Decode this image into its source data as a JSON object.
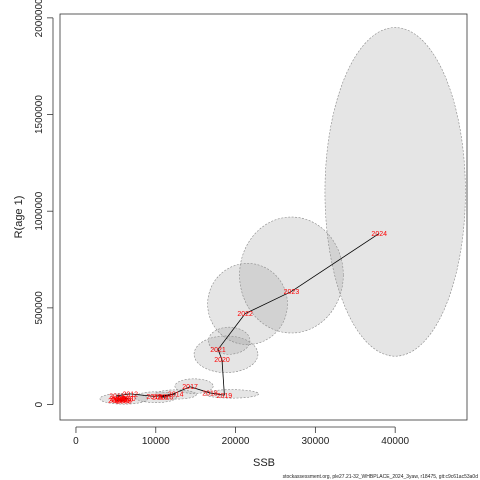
{
  "chart_data": {
    "type": "scatter",
    "xlabel": "SSB",
    "ylabel": "R(age 1)",
    "xlim": [
      -2000,
      49000
    ],
    "ylim": [
      -80000,
      2020000
    ],
    "x_ticks": [
      0,
      10000,
      20000,
      30000,
      40000
    ],
    "y_ticks": [
      0,
      500000,
      1000000,
      1500000,
      2000000
    ],
    "grid": false,
    "series": [
      {
        "points": [
          {
            "label": "2003",
            "x": 5500,
            "y": 25000
          },
          {
            "label": "2004",
            "x": 5200,
            "y": 30000
          },
          {
            "label": "2005",
            "x": 5800,
            "y": 20000
          },
          {
            "label": "2006",
            "x": 6200,
            "y": 28000
          },
          {
            "label": "2007",
            "x": 5000,
            "y": 22000
          },
          {
            "label": "2008",
            "x": 6000,
            "y": 18000
          },
          {
            "label": "2009",
            "x": 5400,
            "y": 26000
          },
          {
            "label": "2010",
            "x": 6500,
            "y": 30000
          },
          {
            "label": "2011",
            "x": 5100,
            "y": 45000
          },
          {
            "label": "2012",
            "x": 6800,
            "y": 55000
          },
          {
            "label": "2013",
            "x": 9800,
            "y": 42000
          },
          {
            "label": "2014",
            "x": 12500,
            "y": 55000
          },
          {
            "label": "2015",
            "x": 10500,
            "y": 40000
          },
          {
            "label": "2016",
            "x": 11200,
            "y": 38000
          },
          {
            "label": "2017",
            "x": 14300,
            "y": 92000
          },
          {
            "label": "2018",
            "x": 16800,
            "y": 60000
          },
          {
            "label": "2019",
            "x": 18600,
            "y": 48000
          },
          {
            "label": "2020",
            "x": 18300,
            "y": 232000
          },
          {
            "label": "2021",
            "x": 17800,
            "y": 285000
          },
          {
            "label": "2022",
            "x": 21200,
            "y": 470000
          },
          {
            "label": "2023",
            "x": 27000,
            "y": 585000
          },
          {
            "label": "2024",
            "x": 38000,
            "y": 885000
          }
        ],
        "ellipses": [
          {
            "cx": 6000,
            "cy": 30000,
            "rx": 3000,
            "ry": 28000
          },
          {
            "cx": 10000,
            "cy": 38000,
            "rx": 2600,
            "ry": 28000
          },
          {
            "cx": 12500,
            "cy": 52000,
            "rx": 2600,
            "ry": 24000
          },
          {
            "cx": 14800,
            "cy": 95000,
            "rx": 2400,
            "ry": 38000
          },
          {
            "cx": 19500,
            "cy": 55000,
            "rx": 3400,
            "ry": 22000
          },
          {
            "cx": 18800,
            "cy": 260000,
            "rx": 4000,
            "ry": 95000
          },
          {
            "cx": 19200,
            "cy": 330000,
            "rx": 2600,
            "ry": 70000
          },
          {
            "cx": 21500,
            "cy": 520000,
            "rx": 5000,
            "ry": 210000
          },
          {
            "cx": 27000,
            "cy": 670000,
            "rx": 6500,
            "ry": 300000
          },
          {
            "cx": 40000,
            "cy": 1100000,
            "rx": 8800,
            "ry": 850000
          }
        ]
      }
    ]
  },
  "footnote": "stockassessment.org, ple27.21-32_WHBPLACE_2024_3yaw, r18475, git:c9c61ac53a0d"
}
